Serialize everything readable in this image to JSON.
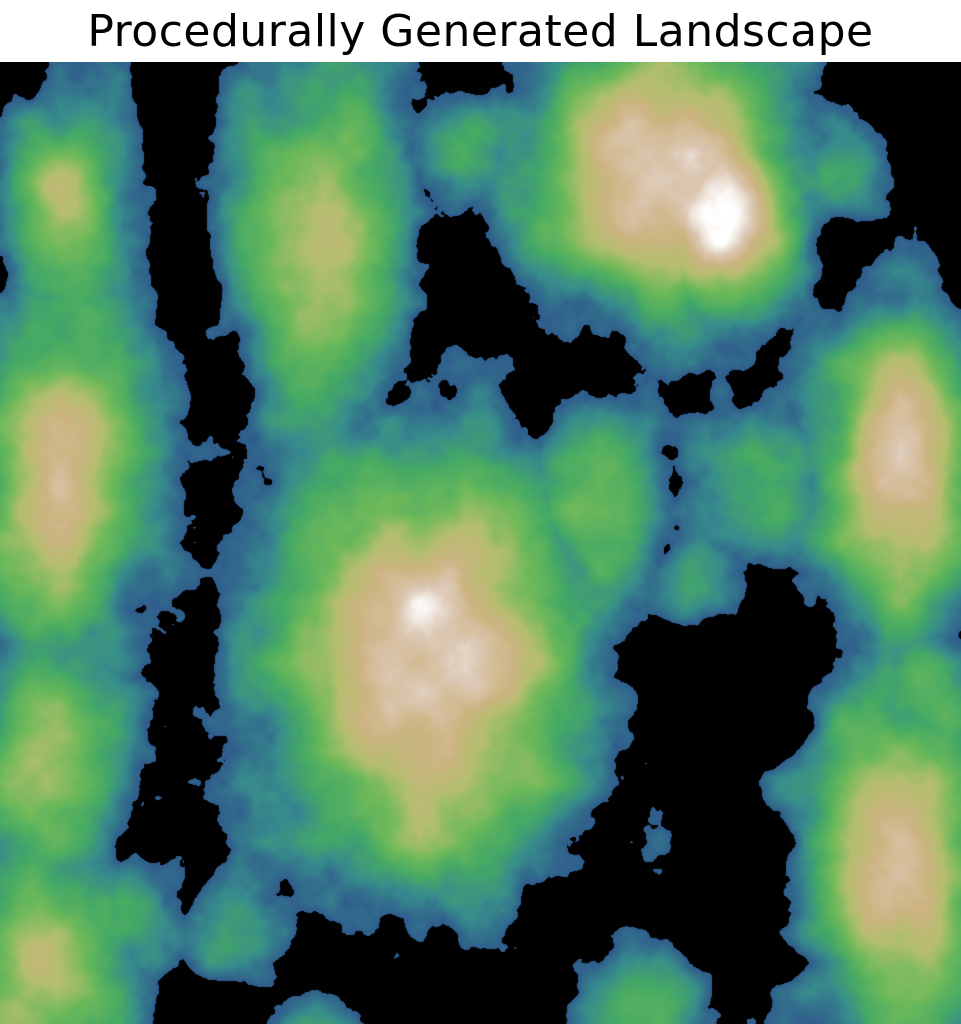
{
  "figure": {
    "title": "Procedurally Generated Landscape"
  },
  "image": {
    "subject": "terrain heightmap",
    "colormap": "terrain",
    "water_color": "#000000",
    "palette": [
      "#2f6f8f",
      "#3f9a7a",
      "#4faa4a",
      "#8cbf5a",
      "#c8b870",
      "#d2b48c",
      "#ffffff"
    ]
  }
}
